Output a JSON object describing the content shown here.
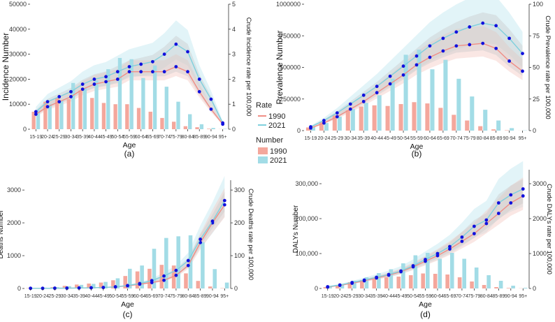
{
  "figure": {
    "legend": {
      "rate_title": "Rate",
      "number_title": "Number",
      "items": [
        "1990",
        "2021"
      ]
    }
  },
  "colors": {
    "bar_1990": "#f4a79c",
    "bar_2021": "#a2dce6",
    "line_1990": "#f08e86",
    "line_2021": "#7fd0dd",
    "band_1990": "#f5c9c4",
    "band_2021": "#bfe7ef",
    "band_overlap": "#c8c8c8",
    "point": "#1111dd"
  },
  "chart_data": [
    {
      "type": "bar+line",
      "caption": "(a)",
      "xlabel": "Age",
      "ylabel": "Incidence Number",
      "y2label": "Crude Incidence rate per 100,000",
      "categories": [
        "15-19",
        "20-24",
        "25-29",
        "30-34",
        "35-39",
        "40-44",
        "45-49",
        "50-54",
        "55-59",
        "60-64",
        "65-69",
        "70-74",
        "75-79",
        "80-84",
        "85-89",
        "90-94",
        "95+"
      ],
      "ylim": [
        0,
        50000
      ],
      "yticks": [
        0,
        10000,
        20000,
        30000,
        40000,
        50000
      ],
      "ytick_labels": [
        "0",
        "10000",
        "20000",
        "30000",
        "40000",
        "50000"
      ],
      "y2lim": [
        0,
        5
      ],
      "y2ticks": [
        0,
        1,
        2,
        3,
        4,
        5
      ],
      "y2tick_labels": [
        "0",
        "1",
        "2",
        "3",
        "4",
        "5"
      ],
      "number_series": [
        {
          "name": "1990",
          "values": [
            7000,
            11000,
            12500,
            12000,
            15500,
            12500,
            10500,
            10000,
            10000,
            8500,
            7000,
            4500,
            3000,
            1200,
            800,
            200,
            50
          ]
        },
        {
          "name": "2021",
          "values": [
            7500,
            10000,
            11500,
            18500,
            16500,
            19500,
            24000,
            28500,
            28000,
            20500,
            25500,
            17000,
            11000,
            6000,
            2000,
            500,
            150
          ]
        }
      ],
      "rate_series": [
        {
          "name": "1990",
          "values": [
            0.6,
            0.9,
            1.1,
            1.3,
            1.6,
            1.8,
            1.9,
            2.0,
            2.3,
            2.3,
            2.3,
            2.3,
            2.5,
            2.3,
            1.5,
            0.8,
            0.2
          ]
        },
        {
          "name": "2021",
          "values": [
            0.7,
            1.1,
            1.3,
            1.5,
            1.8,
            2.0,
            2.1,
            2.3,
            2.5,
            2.6,
            2.7,
            3.0,
            3.4,
            3.1,
            2.0,
            1.2,
            0.25
          ]
        }
      ]
    },
    {
      "type": "bar+line",
      "caption": "(b)",
      "xlabel": "Age",
      "ylabel": "Prevalence Number",
      "y2label": "Crude Prevalence rate per 100,000",
      "categories": [
        "15-19",
        "20-24",
        "25-29",
        "30-34",
        "35-39",
        "40-44",
        "45-49",
        "50-54",
        "55-59",
        "60-64",
        "65-69",
        "70-74",
        "75-79",
        "80-84",
        "85-89",
        "90-94",
        "95+"
      ],
      "ylim": [
        0,
        1000000
      ],
      "yticks": [
        0,
        250000,
        500000,
        750000,
        1000000
      ],
      "ytick_labels": [
        "0",
        "250000",
        "500000",
        "750000",
        "1000000"
      ],
      "y2lim": [
        0,
        100
      ],
      "y2ticks": [
        0,
        25,
        50,
        75,
        100
      ],
      "y2tick_labels": [
        "0",
        "25",
        "50",
        "75",
        "100"
      ],
      "number_series": [
        {
          "name": "1990",
          "values": [
            25000,
            70000,
            120000,
            160000,
            190000,
            200000,
            195000,
            210000,
            225000,
            215000,
            180000,
            125000,
            80000,
            35000,
            10000,
            3000,
            500
          ]
        },
        {
          "name": "2021",
          "values": [
            30000,
            60000,
            110000,
            170000,
            220000,
            280000,
            410000,
            600000,
            640000,
            485000,
            560000,
            410000,
            270000,
            165000,
            80000,
            20000,
            2000
          ]
        }
      ],
      "rate_series": [
        {
          "name": "1990",
          "values": [
            2,
            6,
            11,
            17,
            23,
            30,
            37,
            44,
            52,
            58,
            63,
            67,
            68,
            69,
            65,
            55,
            47
          ]
        },
        {
          "name": "2021",
          "values": [
            3,
            8,
            14,
            21,
            28,
            35,
            43,
            51,
            59,
            67,
            73,
            78,
            82,
            85,
            83,
            73,
            61
          ]
        }
      ]
    },
    {
      "type": "bar+line",
      "caption": "(c)",
      "xlabel": "Age",
      "ylabel": "Deaths Number",
      "y2label": "Crude Deaths rate per 100,000",
      "categories": [
        "15-19",
        "20-24",
        "25-29",
        "30-34",
        "35-39",
        "40-44",
        "45-49",
        "50-54",
        "55-59",
        "60-64",
        "65-69",
        "70-74",
        "75-79",
        "80-84",
        "85-89",
        "90-94",
        "95+"
      ],
      "ylim": [
        0,
        3300
      ],
      "yticks": [
        0,
        1000,
        2000,
        3000
      ],
      "ytick_labels": [
        "0",
        "1000",
        "2000",
        "3000"
      ],
      "y2lim": [
        0,
        330
      ],
      "y2ticks": [
        0,
        100,
        200,
        300
      ],
      "y2tick_labels": [
        "0",
        "100",
        "200",
        "300"
      ],
      "number_series": [
        {
          "name": "1990",
          "values": [
            10,
            20,
            40,
            80,
            120,
            150,
            180,
            250,
            380,
            520,
            600,
            720,
            700,
            460,
            230,
            60,
            10
          ]
        },
        {
          "name": "2021",
          "values": [
            15,
            25,
            40,
            70,
            110,
            140,
            200,
            310,
            600,
            700,
            1210,
            1540,
            1590,
            1620,
            1410,
            590,
            180
          ]
        }
      ],
      "rate_series": [
        {
          "name": "1990",
          "values": [
            0.5,
            0.5,
            0.8,
            1,
            1.5,
            2,
            3,
            5,
            8,
            13,
            18,
            25,
            40,
            70,
            140,
            200,
            255
          ]
        },
        {
          "name": "2021",
          "values": [
            0.5,
            0.5,
            0.8,
            1,
            1.5,
            2,
            3,
            5,
            9,
            15,
            24,
            38,
            55,
            85,
            150,
            205,
            268
          ]
        }
      ]
    },
    {
      "type": "bar+line",
      "caption": "(d)",
      "xlabel": "Age",
      "ylabel": "DALYs Number",
      "y2label": "Crude DALYs rate per 100,000",
      "categories": [
        "15-19",
        "20-24",
        "25-29",
        "30-34",
        "35-39",
        "40-44",
        "45-49",
        "50-54",
        "55-59",
        "60-64",
        "65-69",
        "70-74",
        "75-79",
        "80-84",
        "85-89",
        "90-94",
        "95+"
      ],
      "ylim": [
        0,
        340000
      ],
      "yticks": [
        0,
        100000,
        200000,
        300000
      ],
      "ytick_labels": [
        "0",
        "100,000",
        "200,000",
        "300,000"
      ],
      "y2lim": [
        0,
        3400
      ],
      "y2ticks": [
        0,
        1000,
        2000,
        3000
      ],
      "y2tick_labels": [
        "0",
        "1000",
        "2000",
        "3000"
      ],
      "number_series": [
        {
          "name": "1990",
          "values": [
            4000,
            10000,
            18000,
            24000,
            30000,
            32000,
            34000,
            38000,
            43000,
            42000,
            40000,
            32000,
            20000,
            10000,
            4000,
            1500,
            500
          ]
        },
        {
          "name": "2021",
          "values": [
            5000,
            12000,
            22000,
            32000,
            44000,
            55000,
            72000,
            95000,
            102000,
            85000,
            102000,
            85000,
            60000,
            38000,
            22000,
            8000,
            2000
          ]
        }
      ],
      "rate_series": [
        {
          "name": "1990",
          "values": [
            40,
            90,
            150,
            220,
            300,
            380,
            480,
            620,
            780,
            940,
            1130,
            1350,
            1570,
            1860,
            2150,
            2450,
            2650
          ]
        },
        {
          "name": "2021",
          "values": [
            50,
            100,
            170,
            240,
            320,
            400,
            500,
            650,
            830,
            1000,
            1200,
            1470,
            1780,
            1960,
            2450,
            2680,
            2850
          ]
        }
      ]
    }
  ]
}
